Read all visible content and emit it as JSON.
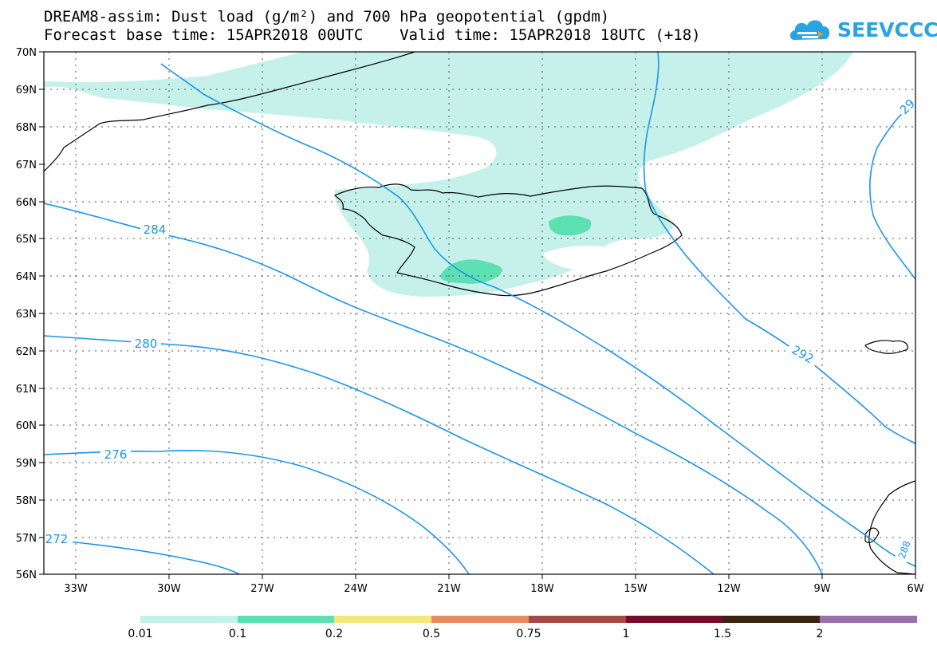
{
  "header": {
    "title_line1": "DREAM8-assim: Dust load (g/m²) and 700 hPa geopotential (gpdm)",
    "title_line2": "Forecast base time: 15APR2018 00UTC    Valid time: 15APR2018 18UTC (+18)"
  },
  "logo": {
    "text": "SEEVCCC",
    "icon": "cloud-icon",
    "color": "#29a3e3"
  },
  "map": {
    "lat_labels": [
      "70N",
      "69N",
      "68N",
      "67N",
      "66N",
      "65N",
      "64N",
      "63N",
      "62N",
      "61N",
      "60N",
      "59N",
      "58N",
      "57N",
      "56N"
    ],
    "lon_labels": [
      "33W",
      "30W",
      "27W",
      "24W",
      "21W",
      "18W",
      "15W",
      "12W",
      "9W",
      "6W"
    ],
    "contour_color": "#1b96e8",
    "contour_labels": [
      "284",
      "280",
      "276",
      "272",
      "292",
      "29",
      "288"
    ]
  },
  "legend": {
    "colors": [
      "#c5f1ea",
      "#5ee0b5",
      "#f3e77c",
      "#e88c60",
      "#a64844",
      "#7a0a2c",
      "#3b2511",
      "#9b6fa8"
    ],
    "labels": [
      "0.01",
      "0.1",
      "0.2",
      "0.5",
      "0.75",
      "1",
      "1.5",
      "2"
    ]
  }
}
